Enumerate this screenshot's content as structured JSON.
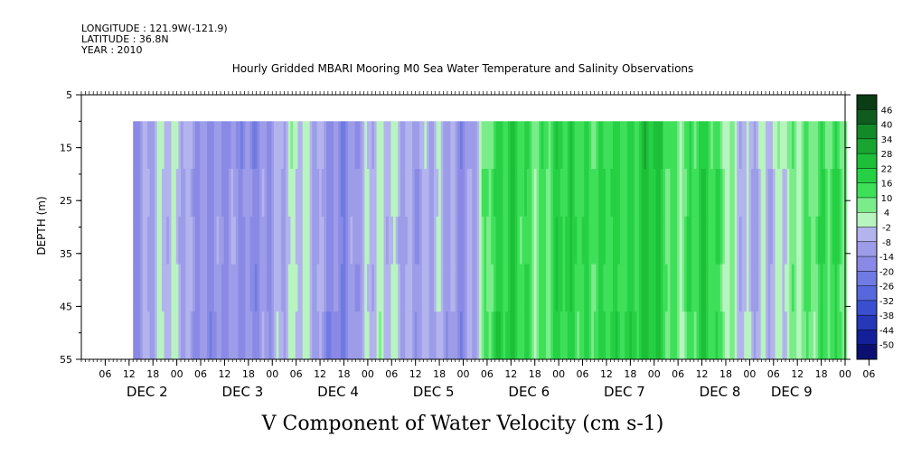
{
  "header": {
    "longitude_label": "LONGITUDE : 121.9W(-121.9)",
    "latitude_label": "LATITUDE : 36.8N",
    "year_label": "YEAR : 2010"
  },
  "chart_data": {
    "type": "heatmap",
    "title": "Hourly Gridded MBARI Mooring M0 Sea Water Temperature and Salinity Observations",
    "xlabel": "V Component of Water Velocity (cm s-1)",
    "ylabel": "DEPTH (m)",
    "ylim": [
      55,
      5
    ],
    "y_ticks": [
      "5",
      "15",
      "25",
      "35",
      "45",
      "55"
    ],
    "y_tick_values": [
      5,
      15,
      25,
      35,
      45,
      55
    ],
    "x_hour_ticks": [
      "06",
      "12",
      "18",
      "00",
      "06",
      "12",
      "18",
      "00",
      "06",
      "12",
      "18",
      "00",
      "06",
      "12",
      "18",
      "00",
      "06",
      "12",
      "18",
      "00",
      "06",
      "12",
      "18",
      "00",
      "06",
      "12",
      "18",
      "00",
      "06",
      "12",
      "18",
      "00",
      "06"
    ],
    "x_hours_start": 6,
    "x_hours_step": 6,
    "x_hours_span": 192,
    "day_labels": [
      "DEC  2",
      "DEC  3",
      "DEC  4",
      "DEC  5",
      "DEC  6",
      "DEC  7",
      "DEC  8",
      "DEC  9"
    ],
    "day_label_hours": [
      12,
      36,
      60,
      84,
      108,
      132,
      156,
      174
    ],
    "data_start_hour": 13,
    "data_top_depth": 10,
    "colorbar_labels": [
      "46",
      "40",
      "34",
      "28",
      "22",
      "16",
      "10",
      "4",
      "-2",
      "-8",
      "-14",
      "-20",
      "-26",
      "-32",
      "-38",
      "-44",
      "-50"
    ],
    "colorbar_values": [
      46,
      40,
      34,
      28,
      22,
      16,
      10,
      4,
      -2,
      -8,
      -14,
      -20,
      -26,
      -32,
      -38,
      -44,
      -50
    ],
    "colorbar_colors": [
      "#0a3d14",
      "#0f5c1e",
      "#138a28",
      "#18a530",
      "#1dbf38",
      "#26d045",
      "#3ee05a",
      "#7aec8a",
      "#b8f4bf",
      "#b3b3ee",
      "#9c9ce8",
      "#8a8ae6",
      "#6f7ae2",
      "#5668dc",
      "#3a4fd0",
      "#2438b8",
      "#14209a",
      "#0b1070"
    ],
    "time_series_hours": [
      13,
      18,
      24,
      30,
      36,
      42,
      48,
      54,
      60,
      66,
      72,
      78,
      84,
      90,
      96,
      102,
      108,
      114,
      120,
      126,
      132,
      138,
      144,
      150,
      156,
      162,
      168,
      174,
      180,
      186,
      192,
      198
    ],
    "time_series_v": [
      -12,
      -8,
      -6,
      -10,
      -14,
      -16,
      -8,
      -4,
      -10,
      -14,
      -6,
      -2,
      -10,
      -8,
      -12,
      12,
      16,
      10,
      18,
      14,
      20,
      12,
      22,
      10,
      18,
      6,
      -6,
      -8,
      10,
      16,
      8,
      -4
    ]
  }
}
